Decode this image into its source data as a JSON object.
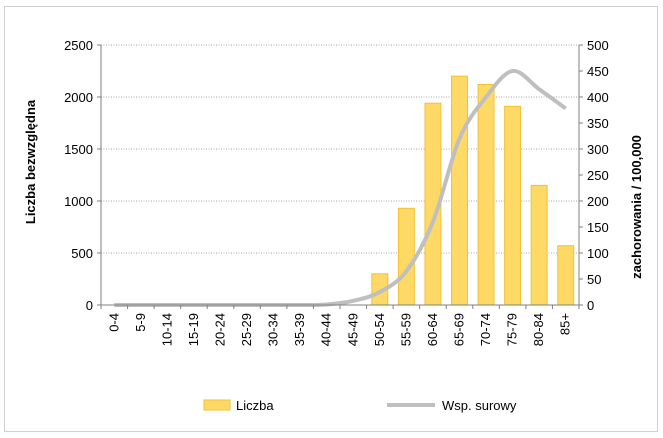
{
  "chart_data": {
    "type": "bar+line",
    "categories": [
      "0-4",
      "5-9",
      "10-14",
      "15-19",
      "20-24",
      "25-29",
      "30-34",
      "35-39",
      "40-44",
      "45-49",
      "50-54",
      "55-59",
      "60-64",
      "65-69",
      "70-74",
      "75-79",
      "80-84",
      "85+"
    ],
    "series": [
      {
        "name": "Liczba",
        "type": "bar",
        "axis": "left",
        "color": "#ffd966",
        "stroke": "#f1c232",
        "values": [
          0,
          0,
          0,
          0,
          0,
          0,
          0,
          0,
          0,
          0,
          300,
          930,
          1940,
          2200,
          2120,
          1910,
          1150,
          570
        ]
      },
      {
        "name": "Wsp. surowy",
        "type": "line",
        "axis": "right",
        "color": "#bfbfbf",
        "values": [
          0,
          0,
          0,
          0,
          0,
          0,
          0,
          0,
          1,
          8,
          25,
          65,
          160,
          320,
          400,
          450,
          415,
          378
        ]
      }
    ],
    "ylabel": "Liczba bezwzględna",
    "y2label": "zachorowania / 100,000",
    "ylim": [
      0,
      2500
    ],
    "y2lim": [
      0,
      500
    ],
    "yticks": [
      "0",
      "500",
      "1000",
      "1500",
      "2000",
      "2500"
    ],
    "y2ticks": [
      "0",
      "50",
      "100",
      "150",
      "200",
      "250",
      "300",
      "350",
      "400",
      "450",
      "500"
    ],
    "grid": true,
    "legend_position": "bottom"
  }
}
